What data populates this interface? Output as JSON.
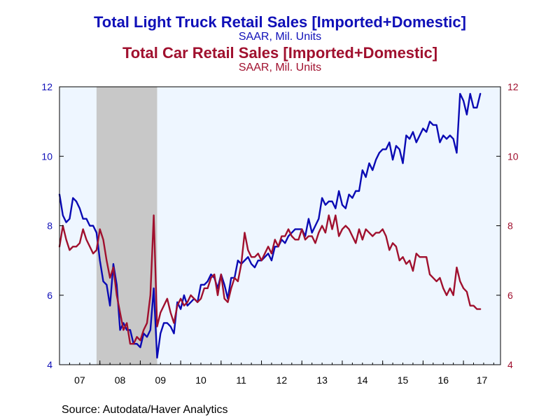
{
  "titles": {
    "truck_title": "Total Light Truck Retail Sales [Imported+Domestic]",
    "truck_sub": "SAAR, Mil. Units",
    "car_title": "Total Car Retail Sales [Imported+Domestic]",
    "car_sub": "SAAR, Mil. Units"
  },
  "source": "Source:  Autodata/Haver Analytics",
  "colors": {
    "truck": "#0a0ab4",
    "car": "#a0102e",
    "plot_bg": "#eef6ff",
    "recession": "#c8c8c8",
    "left_axis_text": "#1010b8",
    "right_axis_text": "#a0102e"
  },
  "chart_data": {
    "type": "line",
    "title": "Total Light Truck Retail Sales [Imported+Domestic] / Total Car Retail Sales [Imported+Domestic]",
    "subtitle": "SAAR, Mil. Units",
    "x_range": [
      2007.0,
      2017.917
    ],
    "xticks": [
      "07",
      "08",
      "09",
      "10",
      "11",
      "12",
      "13",
      "14",
      "15",
      "16",
      "17"
    ],
    "y_left": {
      "ylim": [
        4,
        12
      ],
      "ticks": [
        4,
        6,
        8,
        10,
        12
      ]
    },
    "y_right": {
      "ylim": [
        4,
        12
      ],
      "ticks": [
        4,
        6,
        8,
        10,
        12
      ]
    },
    "grid": false,
    "recession": [
      2007.917,
      2009.417
    ],
    "series": [
      {
        "name": "Total Light Truck Retail Sales [Imported+Domestic]",
        "axis": "left",
        "x_start": 2007.0,
        "step": 0.0833333,
        "values": [
          8.9,
          8.3,
          8.1,
          8.2,
          8.8,
          8.7,
          8.5,
          8.2,
          8.2,
          8.0,
          8.0,
          7.8,
          7.0,
          6.4,
          6.3,
          5.7,
          6.9,
          6.3,
          5.0,
          5.2,
          5.0,
          5.0,
          4.6,
          4.6,
          4.5,
          4.9,
          4.8,
          5.0,
          6.2,
          4.2,
          4.9,
          5.2,
          5.2,
          5.1,
          4.9,
          5.8,
          5.6,
          6.0,
          5.7,
          5.8,
          5.9,
          5.8,
          6.3,
          6.3,
          6.4,
          6.6,
          6.5,
          6.2,
          6.6,
          6.3,
          5.9,
          6.5,
          6.5,
          7.0,
          6.9,
          7.0,
          7.1,
          6.9,
          6.8,
          7.0,
          7.0,
          7.1,
          7.2,
          7.0,
          7.4,
          7.4,
          7.6,
          7.5,
          7.7,
          7.8,
          7.9,
          7.9,
          7.9,
          7.7,
          8.2,
          7.8,
          8.0,
          8.2,
          8.8,
          8.6,
          8.7,
          8.7,
          8.5,
          9.0,
          8.6,
          8.5,
          8.9,
          8.8,
          9.0,
          9.0,
          9.6,
          9.4,
          9.8,
          9.6,
          9.9,
          10.1,
          10.2,
          10.2,
          10.4,
          9.9,
          10.3,
          10.2,
          9.8,
          10.6,
          10.5,
          10.7,
          10.4,
          10.6,
          10.8,
          10.7,
          11.0,
          10.9,
          10.9,
          10.4,
          10.6,
          10.5,
          10.6,
          10.5,
          10.1,
          11.8,
          11.6,
          11.2,
          11.8,
          11.4,
          11.4,
          11.8
        ]
      },
      {
        "name": "Total Car Retail Sales [Imported+Domestic]",
        "axis": "right",
        "x_start": 2007.0,
        "step": 0.0833333,
        "values": [
          7.4,
          8.0,
          7.6,
          7.3,
          7.4,
          7.4,
          7.5,
          7.9,
          7.6,
          7.4,
          7.2,
          7.3,
          7.9,
          7.6,
          7.0,
          6.5,
          6.8,
          6.0,
          5.5,
          5.0,
          5.2,
          4.6,
          4.6,
          4.8,
          4.7,
          5.0,
          5.2,
          6.0,
          8.3,
          5.1,
          5.5,
          5.7,
          5.9,
          5.5,
          5.2,
          5.7,
          5.9,
          5.7,
          5.8,
          6.0,
          5.9,
          5.8,
          5.9,
          6.2,
          6.2,
          6.5,
          6.6,
          6.0,
          6.6,
          5.9,
          5.8,
          6.2,
          6.5,
          6.4,
          6.9,
          7.8,
          7.3,
          7.1,
          7.1,
          7.2,
          7.0,
          7.2,
          7.4,
          7.2,
          7.6,
          7.4,
          7.7,
          7.7,
          7.9,
          7.7,
          7.6,
          7.6,
          7.9,
          7.6,
          7.7,
          7.7,
          7.5,
          7.8,
          8.0,
          7.8,
          8.3,
          7.9,
          8.3,
          7.7,
          7.9,
          8.0,
          7.9,
          7.7,
          7.5,
          7.9,
          7.6,
          7.9,
          7.8,
          7.7,
          7.8,
          7.8,
          7.9,
          7.7,
          7.3,
          7.5,
          7.4,
          7.0,
          7.1,
          6.9,
          7.0,
          6.7,
          7.2,
          7.1,
          7.1,
          7.1,
          6.6,
          6.5,
          6.4,
          6.5,
          6.2,
          6.0,
          6.2,
          6.0,
          6.8,
          6.4,
          6.2,
          6.1,
          5.7,
          5.7,
          5.6,
          5.6
        ]
      }
    ]
  }
}
